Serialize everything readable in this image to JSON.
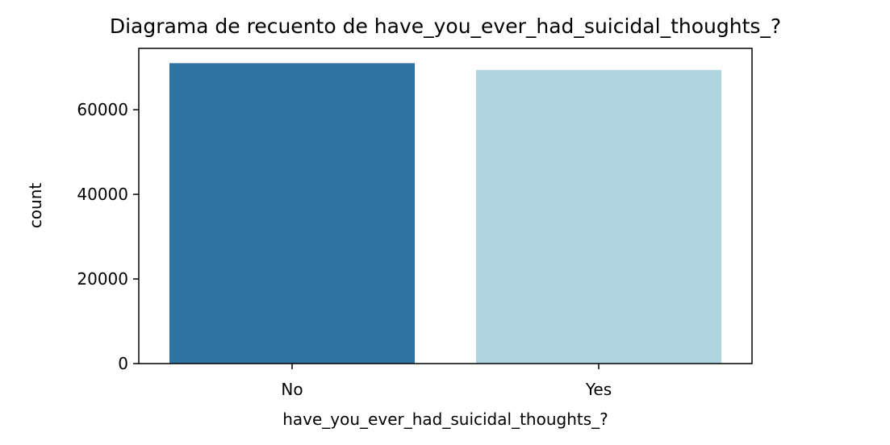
{
  "chart_data": {
    "type": "bar",
    "title": "Diagrama de recuento de have_you_ever_had_suicidal_thoughts_?",
    "xlabel": "have_you_ever_had_suicidal_thoughts_?",
    "ylabel": "count",
    "categories": [
      "No",
      "Yes"
    ],
    "values": [
      71000,
      69400
    ],
    "colors": [
      "#2f73a3",
      "#afd5e0"
    ],
    "ylim": [
      0,
      74500
    ],
    "yticks": [
      0,
      20000,
      40000,
      60000
    ],
    "ytick_labels": [
      "0",
      "20000",
      "40000",
      "60000"
    ],
    "grid": false,
    "legend": "none"
  }
}
